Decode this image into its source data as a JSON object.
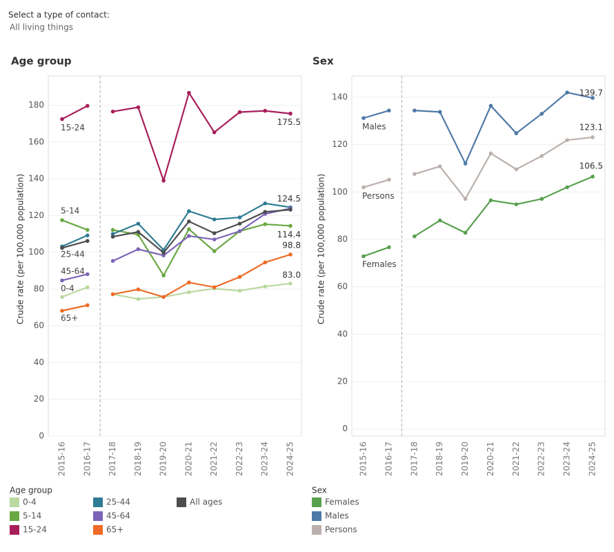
{
  "filter": {
    "label": "Select a type of contact:",
    "value": "All living things"
  },
  "chart_data": [
    {
      "type": "line",
      "title": "Age group",
      "y_label": "Crude rate (per 100,000 population)",
      "categories": [
        "2015-16",
        "2016-17",
        "2017-18",
        "2018-19",
        "2019-20",
        "2020-21",
        "2021-22",
        "2022-23",
        "2023-24",
        "2024-25"
      ],
      "ylim": [
        0,
        196
      ],
      "yticks": [
        0,
        20,
        40,
        60,
        80,
        100,
        120,
        140,
        160,
        180
      ],
      "grid": true,
      "legend_title": "Age group",
      "series": [
        {
          "name": "0-4",
          "color": "#b9d9a0",
          "values": [
            75.7,
            81.0,
            77.2,
            74.6,
            75.7,
            78.3,
            80.2,
            79.1,
            81.4,
            83.0
          ],
          "value_labels": [
            null,
            null,
            null,
            null,
            null,
            null,
            null,
            null,
            null,
            "83.0"
          ]
        },
        {
          "name": "5-14",
          "color": "#6aa843",
          "values": [
            117.5,
            112.2,
            112.2,
            109.6,
            87.4,
            112.6,
            100.6,
            111.5,
            115.3,
            114.4
          ],
          "value_labels": [
            null,
            null,
            null,
            null,
            null,
            null,
            null,
            null,
            null,
            "114.4"
          ]
        },
        {
          "name": "15-24",
          "color": "#a81e5a",
          "values": [
            172.5,
            179.7,
            176.6,
            178.9,
            139.0,
            186.8,
            165.3,
            176.3,
            177.0,
            175.5
          ],
          "value_labels": [
            null,
            null,
            null,
            null,
            null,
            null,
            null,
            null,
            null,
            "175.5"
          ]
        },
        {
          "name": "25-44",
          "color": "#2e7b93",
          "values": [
            103.2,
            109.2,
            110.0,
            115.6,
            101.3,
            122.4,
            117.9,
            119.0,
            126.6,
            124.5
          ],
          "value_labels": [
            null,
            null,
            null,
            null,
            null,
            null,
            null,
            null,
            null,
            "124.5"
          ]
        },
        {
          "name": "45-64",
          "color": "#7d63b8",
          "values": [
            84.7,
            88.1,
            95.3,
            101.7,
            98.3,
            108.9,
            107.0,
            111.5,
            120.9,
            123.9
          ]
        },
        {
          "name": "65+",
          "color": "#ef6a26",
          "values": [
            68.2,
            71.2,
            77.2,
            79.8,
            75.7,
            83.6,
            81.0,
            86.6,
            94.5,
            98.8
          ],
          "value_labels": [
            null,
            null,
            null,
            null,
            null,
            null,
            null,
            null,
            null,
            "98.8"
          ]
        },
        {
          "name": "All ages",
          "color": "#4d4d4d",
          "values": [
            102.4,
            106.2,
            108.5,
            111.1,
            99.8,
            116.8,
            110.4,
            115.6,
            122.0,
            123.2
          ]
        }
      ]
    },
    {
      "type": "line",
      "title": "Sex",
      "y_label": "Crude rate (per 100,000 population)",
      "categories": [
        "2015-16",
        "2016-17",
        "2017-18",
        "2018-19",
        "2019-20",
        "2020-21",
        "2021-22",
        "2022-23",
        "2023-24",
        "2024-25"
      ],
      "ylim": [
        -3,
        149
      ],
      "yticks": [
        0,
        20,
        40,
        60,
        80,
        100,
        120,
        140
      ],
      "grid": true,
      "legend_title": "Sex",
      "series": [
        {
          "name": "Females",
          "color": "#59a14f",
          "values": [
            72.9,
            76.7,
            81.3,
            88.0,
            82.8,
            96.5,
            94.8,
            97.1,
            102.0,
            106.5
          ],
          "value_labels": [
            null,
            null,
            null,
            null,
            null,
            null,
            null,
            null,
            null,
            "106.5"
          ]
        },
        {
          "name": "Males",
          "color": "#4e79a7",
          "values": [
            131.2,
            134.4,
            134.4,
            133.8,
            112.0,
            136.4,
            124.8,
            133.0,
            142.0,
            139.7
          ],
          "value_labels": [
            null,
            null,
            null,
            null,
            null,
            null,
            null,
            null,
            null,
            "139.7"
          ]
        },
        {
          "name": "Persons",
          "color": "#bab0ac",
          "values": [
            102.0,
            105.2,
            107.6,
            110.8,
            97.1,
            116.3,
            109.6,
            115.2,
            121.9,
            123.1
          ],
          "value_labels": [
            null,
            null,
            null,
            null,
            null,
            null,
            null,
            null,
            null,
            "123.1"
          ]
        }
      ]
    }
  ]
}
